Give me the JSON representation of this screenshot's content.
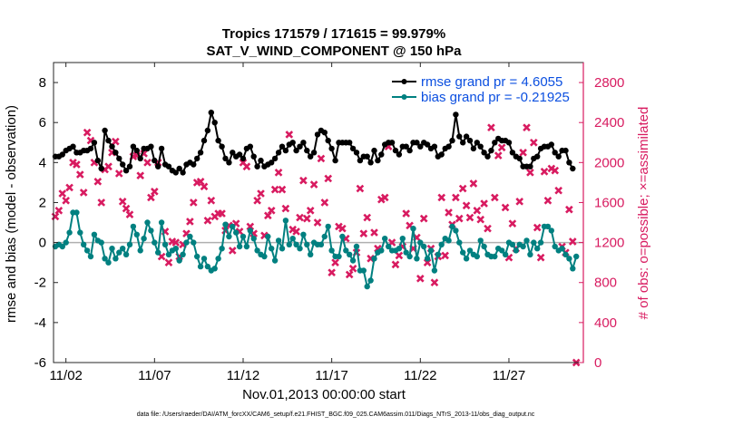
{
  "chart_data": {
    "type": "line",
    "title_line1": "Tropics 171579 / 171615 = 99.979%",
    "title_line2": "SAT_V_WIND_COMPONENT @ 150 hPa",
    "xlabel": "Nov.01,2013 00:00:00 start",
    "ylabel_left": "rmse and bias (model - observation)",
    "ylabel_right": "# of obs: o=possible; ×=assimilated",
    "footer": "data file: /Users/raeder/DAI/ATM_forcXX/CAM6_setup/f.e21.FHIST_BGC.f09_025.CAM6assim.011/Diags_NTrS_2013-11/obs_diag_output.nc",
    "x_ticks": [
      {
        "x": 2,
        "label": "11/02"
      },
      {
        "x": 7,
        "label": "11/07"
      },
      {
        "x": 12,
        "label": "11/12"
      },
      {
        "x": 17,
        "label": "11/17"
      },
      {
        "x": 22,
        "label": "11/22"
      },
      {
        "x": 27,
        "label": "11/27"
      }
    ],
    "left_ticks": [
      "-6",
      "-4",
      "-2",
      "0",
      "2",
      "4",
      "6",
      "8"
    ],
    "right_ticks": [
      "0",
      "400",
      "800",
      "1200",
      "1600",
      "2000",
      "2400",
      "2800"
    ],
    "xlim": [
      1.3,
      31.2
    ],
    "ylim_left": [
      -6,
      9
    ],
    "ylim_right": [
      0,
      3000
    ],
    "zero_line": 0,
    "colors": {
      "rmse": "#000000",
      "bias": "#008080",
      "obs": "#d81b60",
      "legend_text": "#0b4fe0",
      "zero_line": "#b0b0b0"
    },
    "series": [
      {
        "name": "rmse grand pr = 4.6055",
        "axis": "left",
        "marker": "filled-circle",
        "values": [
          4.1,
          4.2,
          4.3,
          4.3,
          4.4,
          4.6,
          4.7,
          4.8,
          4.5,
          4.5,
          4.6,
          4.6,
          4.7,
          5.0,
          4.1,
          3.7,
          5.6,
          5.1,
          4.8,
          4.5,
          4.2,
          3.9,
          3.6,
          3.8,
          4.8,
          4.6,
          4.2,
          4.7,
          4.7,
          4.8,
          4.1,
          3.8,
          4.7,
          3.9,
          3.8,
          3.6,
          3.5,
          3.7,
          3.5,
          3.9,
          4.0,
          3.9,
          4.2,
          4.5,
          5.1,
          5.6,
          6.5,
          6.0,
          5.1,
          4.8,
          4.2,
          4.0,
          4.5,
          4.3,
          4.4,
          4.2,
          4.7,
          4.8,
          4.3,
          3.8,
          4.1,
          3.8,
          3.9,
          4.0,
          4.2,
          4.5,
          4.8,
          4.6,
          4.9,
          5.0,
          4.6,
          4.8,
          5.0,
          4.6,
          4.3,
          4.5,
          5.4,
          5.6,
          5.5,
          5.1,
          4.7,
          4.1,
          5.0,
          5.0,
          5.0,
          5.0,
          4.7,
          4.5,
          4.1,
          4.3,
          4.3,
          4.0,
          4.6,
          4.1,
          4.4,
          4.9,
          5.0,
          5.0,
          4.6,
          4.4,
          4.8,
          4.8,
          4.6,
          5.0,
          5.0,
          4.8,
          5.0,
          4.9,
          4.7,
          4.8,
          4.3,
          4.4,
          4.7,
          4.8,
          5.1,
          6.4,
          5.3,
          5.0,
          5.3,
          5.1,
          4.7,
          5.0,
          4.8,
          4.5,
          4.3,
          4.6,
          5.0,
          5.2,
          5.1,
          5.1,
          5.0,
          4.5,
          4.3,
          4.2,
          3.8,
          3.8,
          3.8,
          4.2,
          4.3,
          4.7,
          4.8,
          4.8,
          4.9,
          4.5,
          4.3,
          4.6,
          4.6,
          4.0,
          3.7
        ]
      },
      {
        "name": "bias grand pr = -0.21925",
        "axis": "left",
        "marker": "filled-circle",
        "values": [
          0.0,
          -0.1,
          -0.2,
          -0.1,
          -0.2,
          0.0,
          0.5,
          1.5,
          1.5,
          0.5,
          -0.1,
          -0.4,
          -0.7,
          0.4,
          0.1,
          0.0,
          -0.8,
          -1.0,
          -0.3,
          -0.8,
          -0.5,
          -0.3,
          -0.6,
          -0.1,
          0.8,
          0.4,
          -0.4,
          0.2,
          1.0,
          0.6,
          0.0,
          -0.5,
          1.0,
          -0.1,
          -0.6,
          -0.4,
          -0.3,
          -0.9,
          -0.6,
          0.0,
          0.3,
          0.0,
          -0.7,
          -1.2,
          -0.8,
          -1.2,
          -1.4,
          -1.3,
          -0.8,
          -0.3,
          0.9,
          0.3,
          0.8,
          0.5,
          -0.2,
          0.3,
          -0.2,
          0.6,
          0.2,
          -0.4,
          -0.6,
          -0.7,
          0.3,
          -0.3,
          -0.9,
          0.1,
          -0.3,
          1.1,
          -0.1,
          0.2,
          -0.1,
          -0.3,
          0.4,
          -0.1,
          -0.6,
          0.0,
          -0.1,
          -0.1,
          0.3,
          0.8,
          -0.4,
          -0.7,
          -0.7,
          0.3,
          -0.4,
          -0.6,
          -0.9,
          -0.2,
          -1.4,
          -1.4,
          -2.2,
          -1.9,
          -0.8,
          -0.5,
          -0.4,
          0.2,
          -0.2,
          -0.4,
          -0.4,
          -0.3,
          0.2,
          -0.5,
          -0.7,
          0.7,
          -0.8,
          0.0,
          -0.2,
          -0.8,
          -0.4,
          -1.4,
          -0.6,
          -0.1,
          0.2,
          0.1,
          0.8,
          0.6,
          0.0,
          -0.5,
          -0.8,
          -0.4,
          -0.6,
          -0.7,
          0.1,
          -0.2,
          -0.6,
          -0.7,
          -0.7,
          -0.3,
          -0.4,
          -0.6,
          0.0,
          -0.1,
          -0.4,
          -0.1,
          -0.2,
          0.1,
          -0.6,
          0.0,
          -0.3,
          0.0,
          0.8,
          0.8,
          0.6,
          -0.2,
          -0.4,
          -0.3,
          -0.6,
          -0.8,
          -1.3,
          -0.7
        ]
      },
      {
        "name": "# of obs assimilated",
        "axis": "right",
        "marker": "x",
        "values": [
          2150,
          1430,
          1460,
          1520,
          1690,
          1620,
          1750,
          2000,
          1980,
          1880,
          1700,
          2300,
          2220,
          2000,
          1810,
          1600,
          1930,
          1960,
          2100,
          2210,
          1890,
          1610,
          1540,
          1480,
          2060,
          2070,
          1870,
          2090,
          2000,
          1650,
          1710,
          2000,
          1060,
          1310,
          1000,
          1210,
          1200,
          1060,
          1180,
          1290,
          1410,
          1600,
          1800,
          1810,
          1760,
          1420,
          1620,
          1460,
          1490,
          1490,
          1320,
          1370,
          1120,
          1390,
          1310,
          2000,
          1960,
          1360,
          1290,
          1620,
          1690,
          1270,
          1470,
          1520,
          1730,
          1900,
          1730,
          1540,
          2280,
          1330,
          1310,
          1450,
          1820,
          1440,
          1520,
          1780,
          1400,
          2040,
          1600,
          1840,
          900,
          1000,
          1360,
          1340,
          1240,
          880,
          940,
          1100,
          1740,
          1290,
          1450,
          1040,
          1300,
          1140,
          1630,
          1650,
          2160,
          1200,
          980,
          1070,
          1160,
          1490,
          1370,
          1140,
          1250,
          840,
          1440,
          1000,
          1140,
          800,
          1060,
          1650,
          1070,
          1500,
          1380,
          1650,
          1440,
          1740,
          1570,
          1450,
          1790,
          1520,
          1430,
          1590,
          1340,
          2350,
          1650,
          2070,
          2150,
          1550,
          1050,
          1390,
          1140,
          1610,
          2100,
          2350,
          1900,
          2200,
          1350,
          1050,
          1910,
          1620,
          1940,
          1920,
          1720,
          1160,
          1100,
          1530,
          1210,
          0
        ]
      }
    ],
    "legend": [
      {
        "label": "rmse grand pr = 4.6055",
        "series": "rmse"
      },
      {
        "label": "bias grand pr = -0.21925",
        "series": "bias"
      }
    ]
  }
}
